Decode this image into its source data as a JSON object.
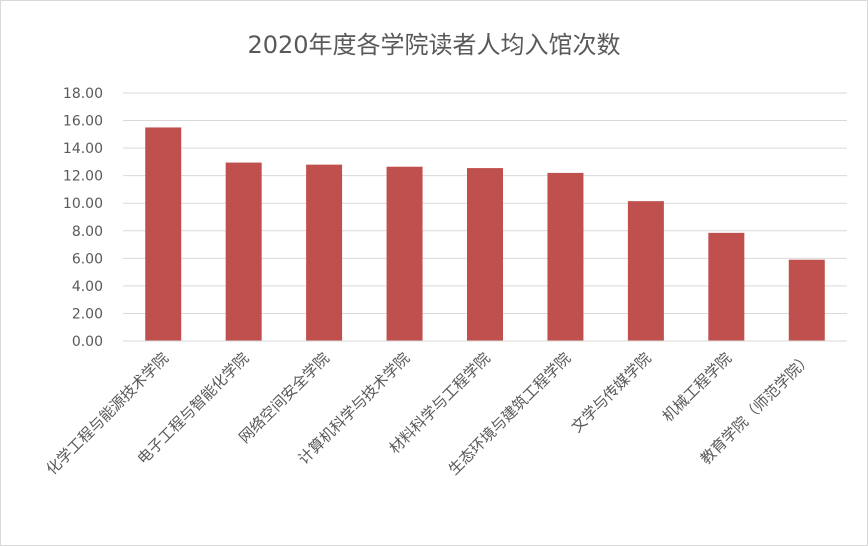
{
  "chart_data": {
    "type": "bar",
    "title": "2020年度各学院读者人均入馆次数",
    "xlabel": "",
    "ylabel": "",
    "categories": [
      "化学工程与能源技术学院",
      "电子工程与智能化学院",
      "网络空间安全学院",
      "计算机科学与技术学院",
      "材料科学与工程学院",
      "生态环境与建筑工程学院",
      "文学与传媒学院",
      "机械工程学院",
      "教育学院（师范学院）"
    ],
    "values": [
      15.5,
      12.95,
      12.8,
      12.65,
      12.55,
      12.2,
      10.15,
      7.85,
      5.9
    ],
    "ylim": [
      0,
      18
    ],
    "yticks": [
      "0.00",
      "2.00",
      "4.00",
      "6.00",
      "8.00",
      "10.00",
      "12.00",
      "14.00",
      "16.00",
      "18.00"
    ],
    "grid": true,
    "legend": "none",
    "bar_color": "#c0504d",
    "grid_color": "#d9d9d9",
    "text_color": "#595959"
  }
}
